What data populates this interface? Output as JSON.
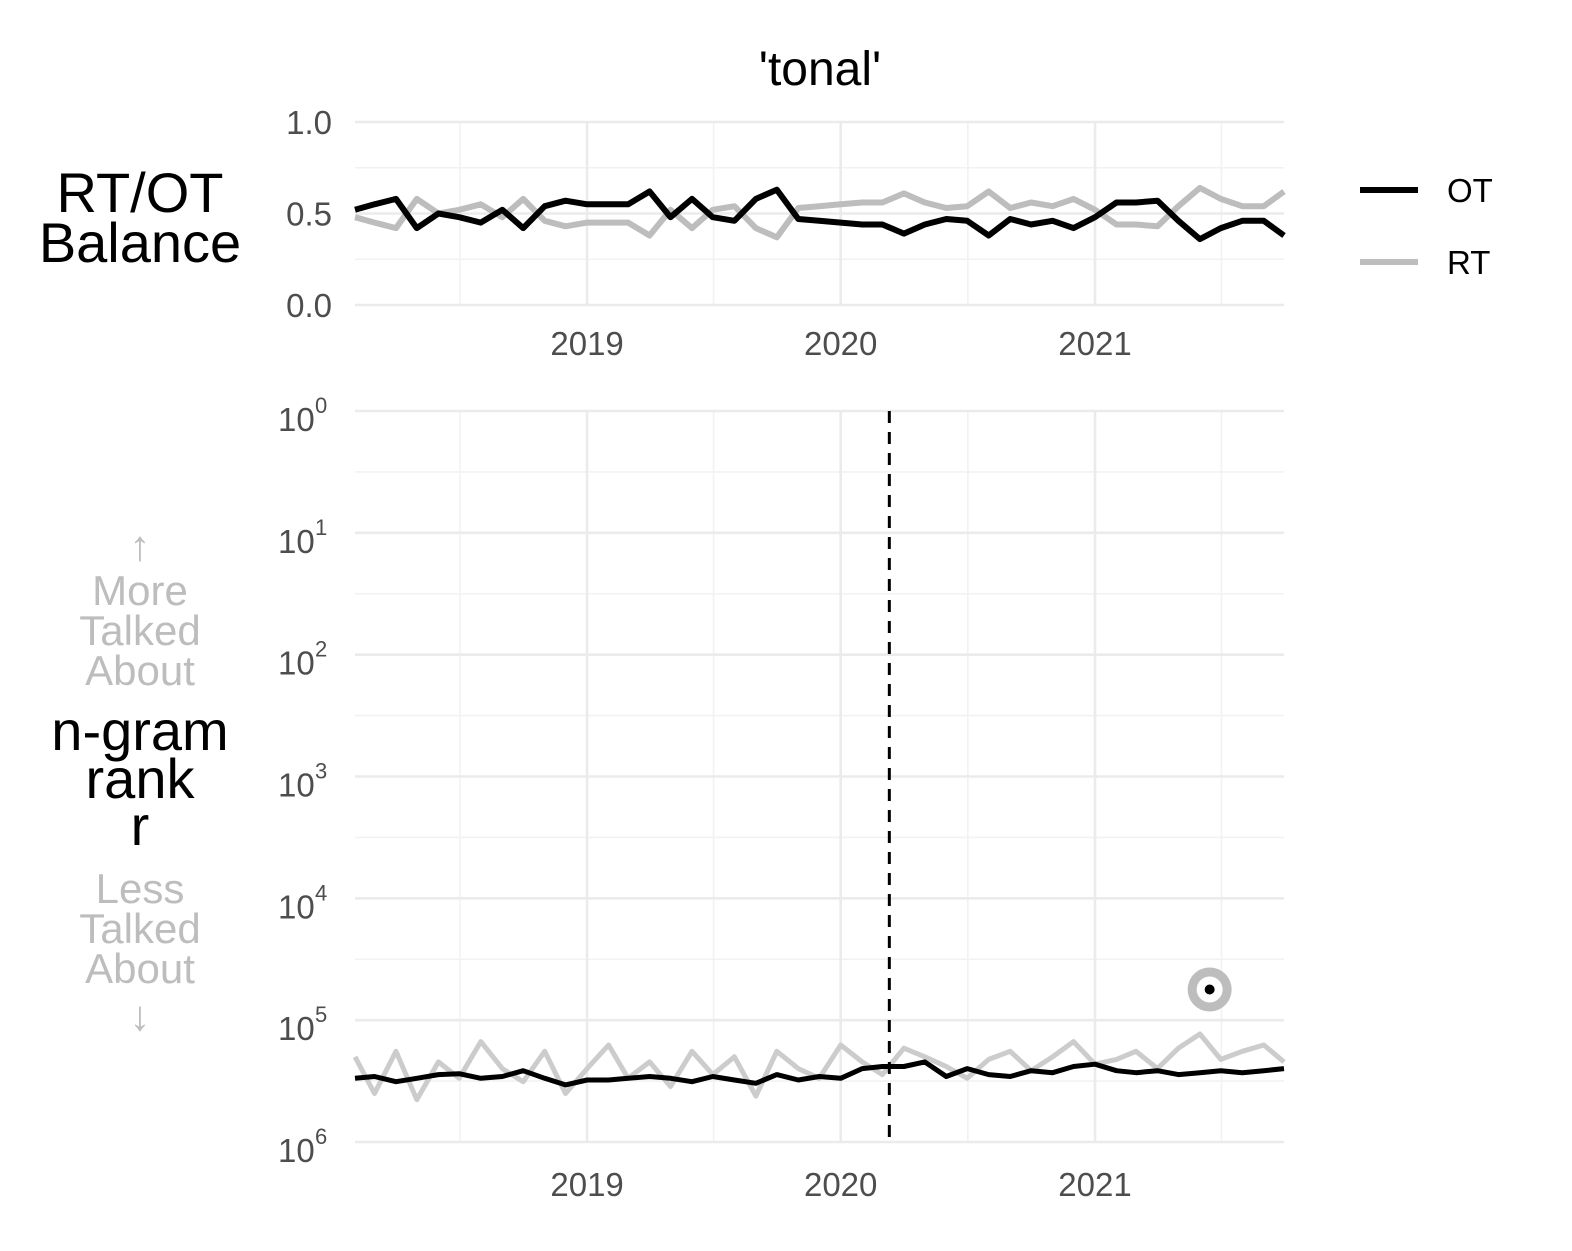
{
  "chart_data": [
    {
      "panel": "top",
      "type": "line",
      "title": "'tonal'",
      "ylabel": [
        "RT/OT",
        "Balance"
      ],
      "ylim": [
        0.0,
        1.0
      ],
      "xlim": [
        "2018-02-01",
        "2021-09-30"
      ],
      "y_ticks": [
        "0.0",
        "0.5",
        "1.0"
      ],
      "y_tick_values": [
        0.0,
        0.5,
        1.0
      ],
      "x_ticks": [
        "2019",
        "2020",
        "2021"
      ],
      "x_tick_values": [
        "2019-01-01",
        "2020-01-01",
        "2021-01-01"
      ],
      "grid": true,
      "legend": {
        "position": "right",
        "entries": [
          {
            "label": "OT",
            "color": "#000000"
          },
          {
            "label": "RT",
            "color": "#bdbdbd"
          }
        ]
      },
      "x": [
        "2018-02-01",
        "2018-03-01",
        "2018-04-01",
        "2018-05-01",
        "2018-06-01",
        "2018-07-01",
        "2018-08-01",
        "2018-09-01",
        "2018-10-01",
        "2018-11-01",
        "2018-12-01",
        "2019-01-01",
        "2019-02-01",
        "2019-03-01",
        "2019-04-01",
        "2019-05-01",
        "2019-06-01",
        "2019-07-01",
        "2019-08-01",
        "2019-09-01",
        "2019-10-01",
        "2019-11-01",
        "2019-12-01",
        "2020-01-01",
        "2020-02-01",
        "2020-03-01",
        "2020-04-01",
        "2020-05-01",
        "2020-06-01",
        "2020-07-01",
        "2020-08-01",
        "2020-09-01",
        "2020-10-01",
        "2020-11-01",
        "2020-12-01",
        "2021-01-01",
        "2021-02-01",
        "2021-03-01",
        "2021-04-01",
        "2021-05-01",
        "2021-06-01",
        "2021-07-01",
        "2021-08-01",
        "2021-09-01",
        "2021-09-30"
      ],
      "series": [
        {
          "name": "OT",
          "color": "#000000",
          "values": [
            0.52,
            0.55,
            0.58,
            0.42,
            0.5,
            0.48,
            0.45,
            0.52,
            0.42,
            0.54,
            0.57,
            0.55,
            0.55,
            0.55,
            0.62,
            0.48,
            0.58,
            0.48,
            0.46,
            0.58,
            0.63,
            0.47,
            0.46,
            0.45,
            0.44,
            0.44,
            0.39,
            0.44,
            0.47,
            0.46,
            0.38,
            0.47,
            0.44,
            0.46,
            0.42,
            0.48,
            0.56,
            0.56,
            0.57,
            0.46,
            0.36,
            0.42,
            0.46,
            0.46,
            0.38
          ]
        },
        {
          "name": "RT",
          "color": "#bdbdbd",
          "values": [
            0.48,
            0.45,
            0.42,
            0.58,
            0.5,
            0.52,
            0.55,
            0.48,
            0.58,
            0.46,
            0.43,
            0.45,
            0.45,
            0.45,
            0.38,
            0.52,
            0.42,
            0.52,
            0.54,
            0.42,
            0.37,
            0.53,
            0.54,
            0.55,
            0.56,
            0.56,
            0.61,
            0.56,
            0.53,
            0.54,
            0.62,
            0.53,
            0.56,
            0.54,
            0.58,
            0.52,
            0.44,
            0.44,
            0.43,
            0.54,
            0.64,
            0.58,
            0.54,
            0.54,
            0.62
          ]
        }
      ]
    },
    {
      "panel": "bottom",
      "type": "line",
      "ylabel": [
        "n-gram",
        "rank",
        "r"
      ],
      "annotation_top": [
        "↑",
        "More",
        "Talked",
        "About"
      ],
      "annotation_bottom": [
        "Less",
        "Talked",
        "About",
        "↓"
      ],
      "y_scale": "log10",
      "y_reversed": true,
      "ylim": [
        1,
        1000000
      ],
      "y_tick_values": [
        1,
        10,
        100,
        1000,
        10000,
        100000,
        1000000
      ],
      "y_ticks": [
        {
          "base": "10",
          "exp": "0"
        },
        {
          "base": "10",
          "exp": "1"
        },
        {
          "base": "10",
          "exp": "2"
        },
        {
          "base": "10",
          "exp": "3"
        },
        {
          "base": "10",
          "exp": "4"
        },
        {
          "base": "10",
          "exp": "5"
        },
        {
          "base": "10",
          "exp": "6"
        }
      ],
      "xlim": [
        "2018-02-01",
        "2021-09-30"
      ],
      "x_ticks": [
        "2019",
        "2020",
        "2021"
      ],
      "x_tick_values": [
        "2019-01-01",
        "2020-01-01",
        "2021-01-01"
      ],
      "grid": true,
      "vline": {
        "x": "2020-03-11",
        "style": "dashed",
        "color": "#000000"
      },
      "highlight_point": {
        "x": "2021-06-15",
        "y": 56000
      },
      "x": [
        "2018-02-01",
        "2018-03-01",
        "2018-04-01",
        "2018-05-01",
        "2018-06-01",
        "2018-07-01",
        "2018-08-01",
        "2018-09-01",
        "2018-10-01",
        "2018-11-01",
        "2018-12-01",
        "2019-01-01",
        "2019-02-01",
        "2019-03-01",
        "2019-04-01",
        "2019-05-01",
        "2019-06-01",
        "2019-07-01",
        "2019-08-01",
        "2019-09-01",
        "2019-10-01",
        "2019-11-01",
        "2019-12-01",
        "2020-01-01",
        "2020-02-01",
        "2020-03-01",
        "2020-04-01",
        "2020-05-01",
        "2020-06-01",
        "2020-07-01",
        "2020-08-01",
        "2020-09-01",
        "2020-10-01",
        "2020-11-01",
        "2020-12-01",
        "2021-01-01",
        "2021-02-01",
        "2021-03-01",
        "2021-04-01",
        "2021-05-01",
        "2021-06-01",
        "2021-07-01",
        "2021-08-01",
        "2021-09-01",
        "2021-09-30"
      ],
      "series": [
        {
          "name": "OT",
          "color": "#000000",
          "values": [
            300000,
            290000,
            320000,
            300000,
            280000,
            275000,
            300000,
            290000,
            260000,
            300000,
            340000,
            310000,
            310000,
            300000,
            290000,
            300000,
            320000,
            290000,
            310000,
            330000,
            280000,
            310000,
            290000,
            300000,
            250000,
            240000,
            240000,
            220000,
            290000,
            250000,
            280000,
            290000,
            260000,
            270000,
            240000,
            230000,
            260000,
            270000,
            260000,
            280000,
            270000,
            260000,
            270000,
            260000,
            250000
          ]
        },
        {
          "name": "RT",
          "color": "#cccccc",
          "values": [
            200000,
            400000,
            180000,
            450000,
            220000,
            300000,
            150000,
            250000,
            320000,
            180000,
            400000,
            250000,
            160000,
            300000,
            220000,
            350000,
            180000,
            280000,
            200000,
            420000,
            180000,
            250000,
            300000,
            160000,
            220000,
            280000,
            170000,
            200000,
            240000,
            300000,
            210000,
            180000,
            260000,
            200000,
            150000,
            230000,
            210000,
            180000,
            250000,
            170000,
            130000,
            210000,
            180000,
            160000,
            220000
          ]
        }
      ]
    }
  ]
}
